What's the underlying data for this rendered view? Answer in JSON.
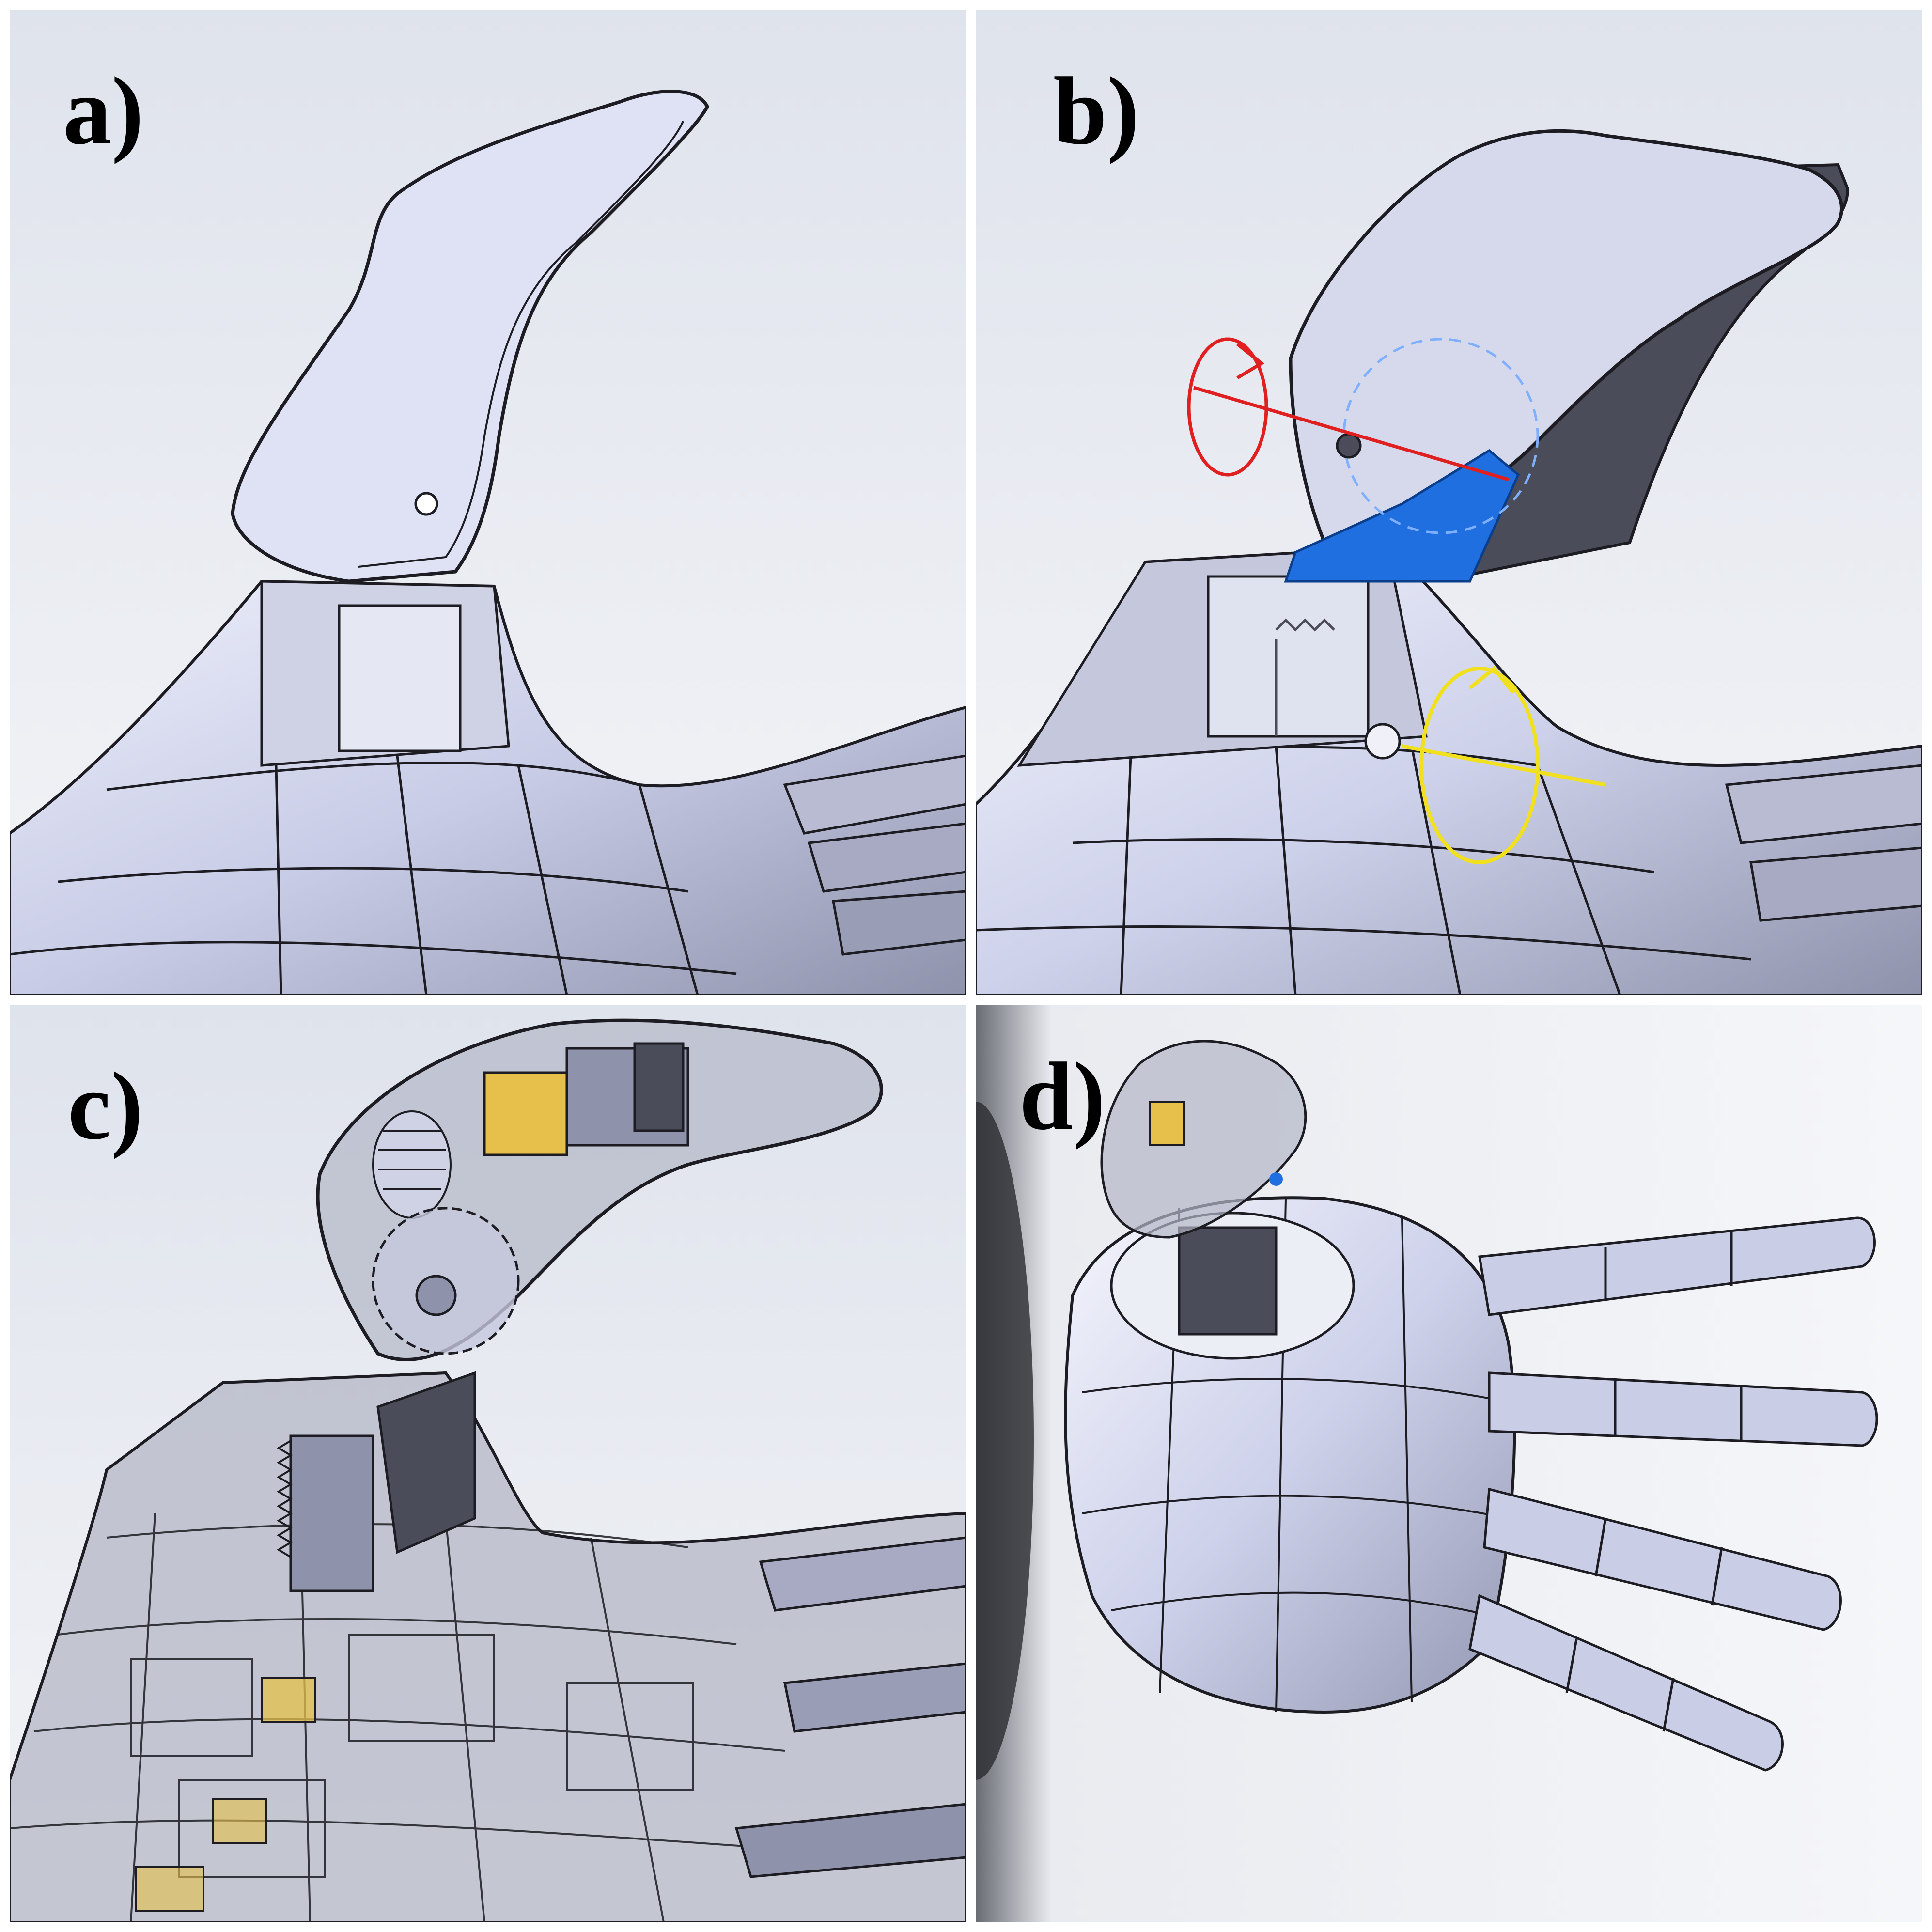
{
  "panels": [
    {
      "id": "a",
      "label": "a)"
    },
    {
      "id": "b",
      "label": "b)"
    },
    {
      "id": "c",
      "label": "c)"
    },
    {
      "id": "d",
      "label": "d)"
    }
  ],
  "colors": {
    "background_top": "#e6e9f0",
    "background_bottom": "#f4f5f8",
    "part_light": "#e4e7f6",
    "part_mid": "#c9cde6",
    "part_dark": "#4a4c5a",
    "edge_line": "#1c1c22",
    "rotation_axis_thumb": "#e02020",
    "rotation_axis_base": "#f0e020",
    "gear_highlight": "#1f6fe0",
    "gear_outline": "#7fb0ff",
    "motor_yellow": "#e6c04a",
    "translucent_shell": "#a9acb8"
  },
  "icons": [
    "rotation-arrow-icon"
  ]
}
